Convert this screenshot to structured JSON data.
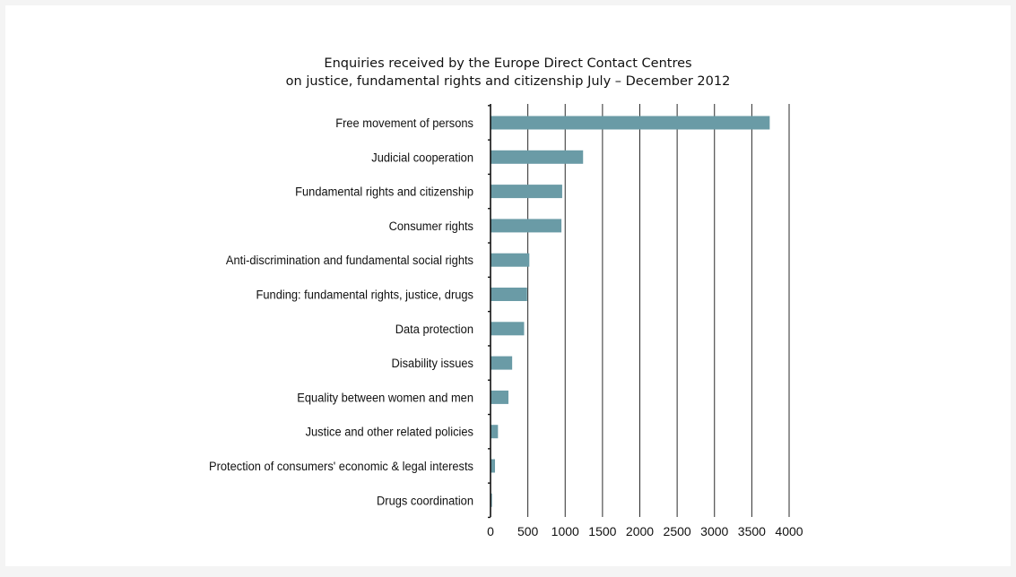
{
  "chart_data": {
    "type": "bar",
    "orientation": "horizontal",
    "title_lines": [
      "Enquiries received by the Europe Direct Contact Centres",
      "on justice, fundamental rights and citizenship July – December 2012"
    ],
    "categories": [
      "Free movement of persons",
      "Judicial cooperation",
      "Fundamental rights and citizenship",
      "Consumer rights",
      "Anti-discrimination and fundamental social rights",
      "Funding: fundamental rights, justice, drugs",
      "Data protection",
      "Disability issues",
      "Equality between women and men",
      "Justice and other related policies",
      "Protection of consumers' economic & legal interests",
      "Drugs coordination"
    ],
    "values": [
      3740,
      1240,
      960,
      950,
      520,
      490,
      450,
      290,
      240,
      100,
      60,
      20
    ],
    "xlim": [
      0,
      4000
    ],
    "xticks": [
      0,
      500,
      1000,
      1500,
      2000,
      2500,
      3000,
      3500,
      4000
    ],
    "grid": "vertical",
    "legend": "none",
    "bar_color": "#6a9ba6"
  }
}
